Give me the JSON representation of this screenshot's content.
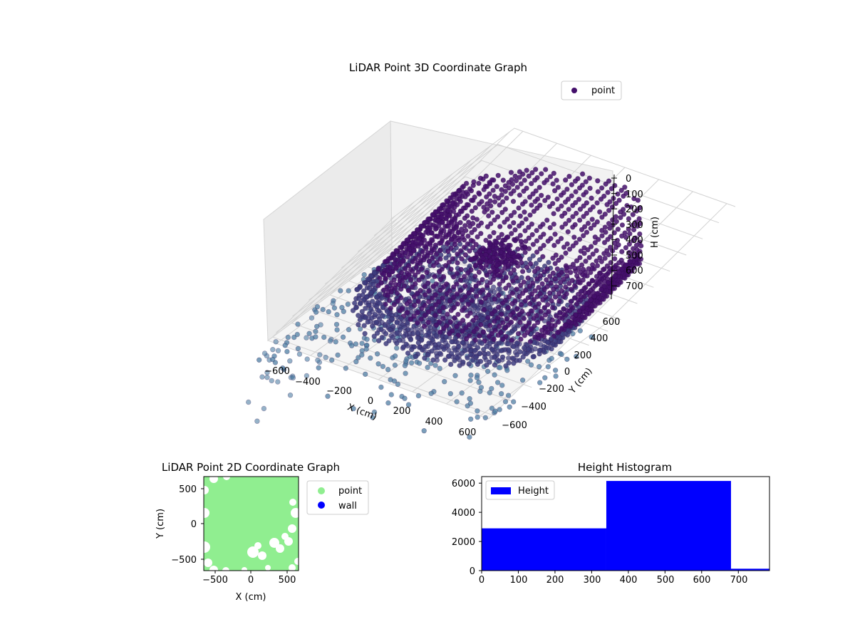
{
  "chart_data": [
    {
      "type": "scatter",
      "title": "LiDAR Point 3D Coordinate Graph",
      "xlabel": "X (cm)",
      "ylabel": "Y (cm)",
      "zlabel": "H (cm)",
      "x_ticks": [
        "−600",
        "−400",
        "−200",
        "0",
        "200",
        "400",
        "600"
      ],
      "y_ticks": [
        "−600",
        "−400",
        "−200",
        "0",
        "200",
        "400",
        "600"
      ],
      "z_ticks": [
        "0",
        "100",
        "200",
        "300",
        "400",
        "500",
        "600",
        "700"
      ],
      "xlim": [
        -650,
        650
      ],
      "ylim": [
        -650,
        650
      ],
      "zlim": [
        0,
        750
      ],
      "z_axis_inverted": true,
      "colormap": "viridis",
      "legend": {
        "entries": [
          "point"
        ],
        "location": "top-right"
      },
      "marker_color": "#440f6b",
      "grid": true,
      "series": [
        {
          "name": "point",
          "description_values": "dense cylindrical ring of points (radius ≈ 550 cm) spanning H ≈ 50–650 cm, a central cluster near H ≈ 350 cm, and sparse scattered points below the floor"
        }
      ]
    },
    {
      "type": "scatter",
      "title": "LiDAR Point 2D Coordinate Graph",
      "xlabel": "X (cm)",
      "ylabel": "Y (cm)",
      "x_ticks": [
        "−500",
        "0",
        "500"
      ],
      "y_ticks": [
        "500",
        "0",
        "−500"
      ],
      "xlim": [
        -650,
        650
      ],
      "ylim": [
        -650,
        650
      ],
      "legend": {
        "entries": [
          "point",
          "wall"
        ],
        "location": "outside-right"
      },
      "colors": {
        "point": "#90ee90",
        "wall": "#0000ff"
      },
      "grid": false
    },
    {
      "type": "bar",
      "title": "Height Histogram",
      "xlabel": "",
      "ylabel": "",
      "bins": [
        {
          "start": 0,
          "end": 340,
          "count": 2900
        },
        {
          "start": 340,
          "end": 680,
          "count": 6150
        },
        {
          "start": 680,
          "end": 785,
          "count": 130
        }
      ],
      "x_ticks": [
        "0",
        "100",
        "200",
        "300",
        "400",
        "500",
        "600",
        "700"
      ],
      "y_ticks": [
        "0",
        "2000",
        "4000",
        "6000"
      ],
      "xlim": [
        0,
        785
      ],
      "ylim": [
        0,
        6450
      ],
      "color": "#0000ff",
      "legend": {
        "entries": [
          "Height"
        ],
        "location": "top-left"
      },
      "grid": false
    }
  ]
}
